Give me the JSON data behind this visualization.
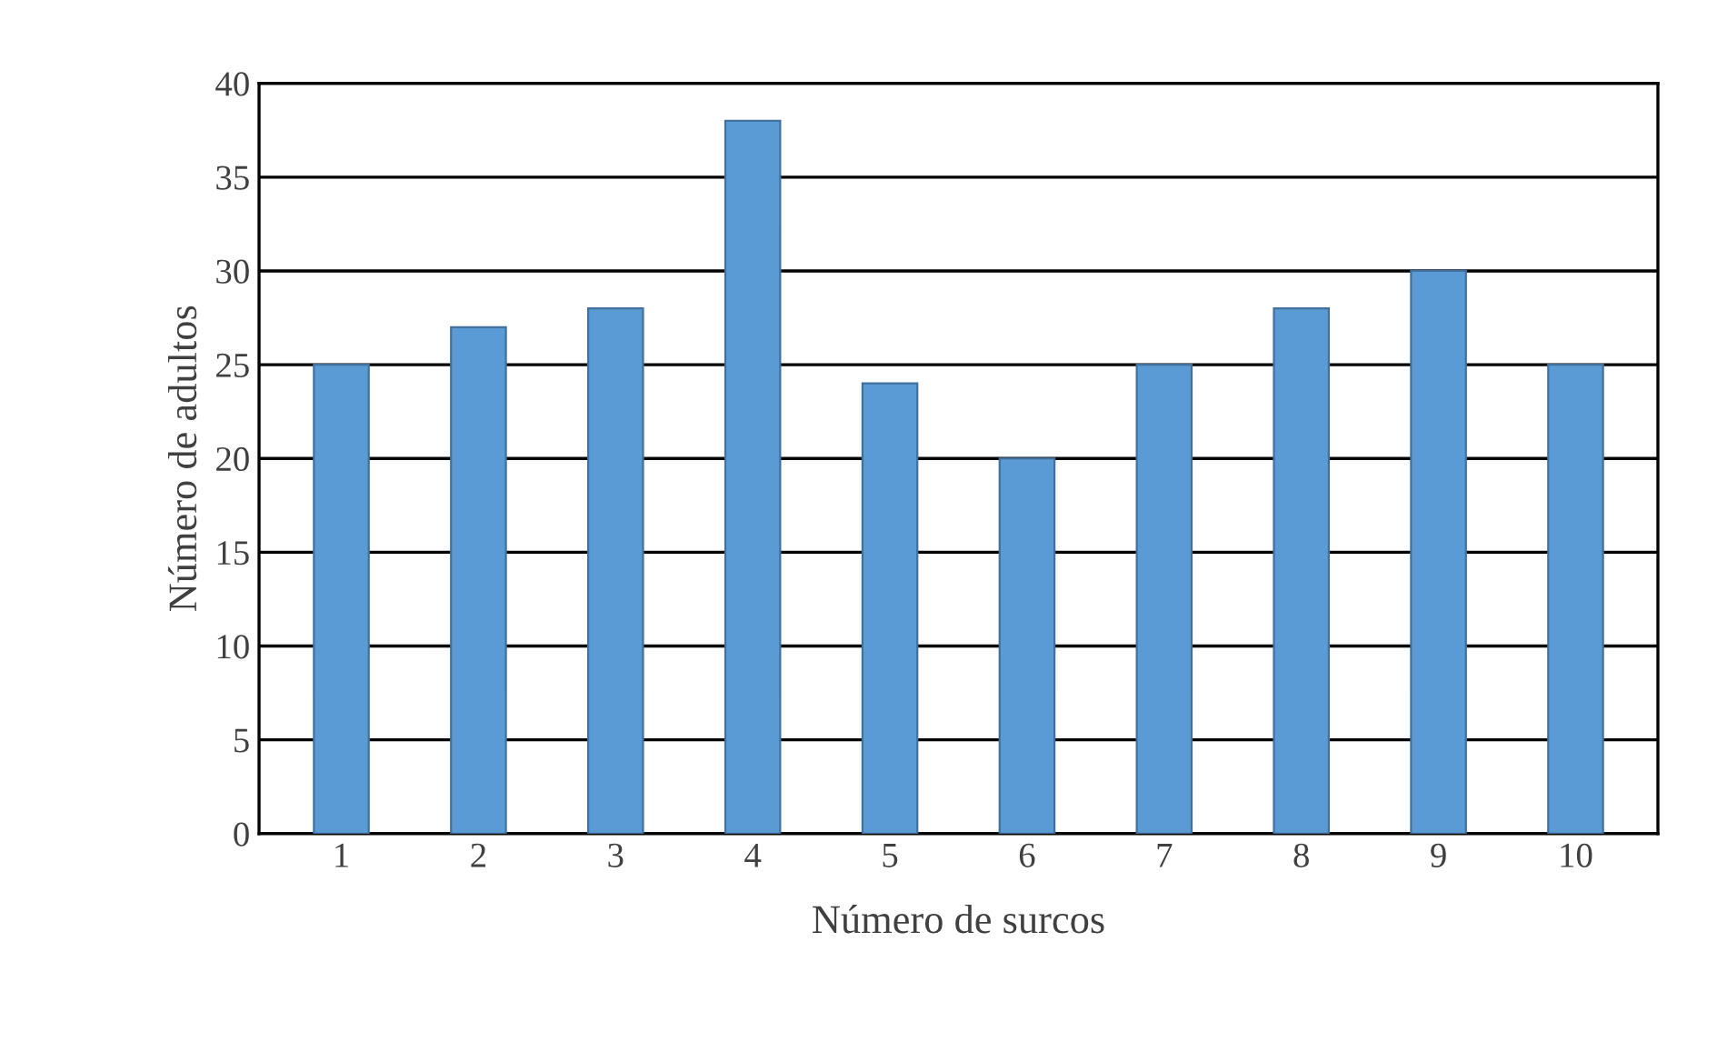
{
  "chart_data": {
    "type": "bar",
    "xlabel": "Número de surcos",
    "ylabel": "Número de adultos",
    "categories": [
      "1",
      "2",
      "3",
      "4",
      "5",
      "6",
      "7",
      "8",
      "9",
      "10"
    ],
    "values": [
      25,
      27,
      28,
      38,
      24,
      20,
      25,
      28,
      30,
      25
    ],
    "color": "#5b9bd5",
    "ylim": [
      0,
      40
    ],
    "yticks": [
      0,
      5,
      10,
      15,
      20,
      25,
      30,
      35,
      40
    ],
    "grid": "y"
  }
}
